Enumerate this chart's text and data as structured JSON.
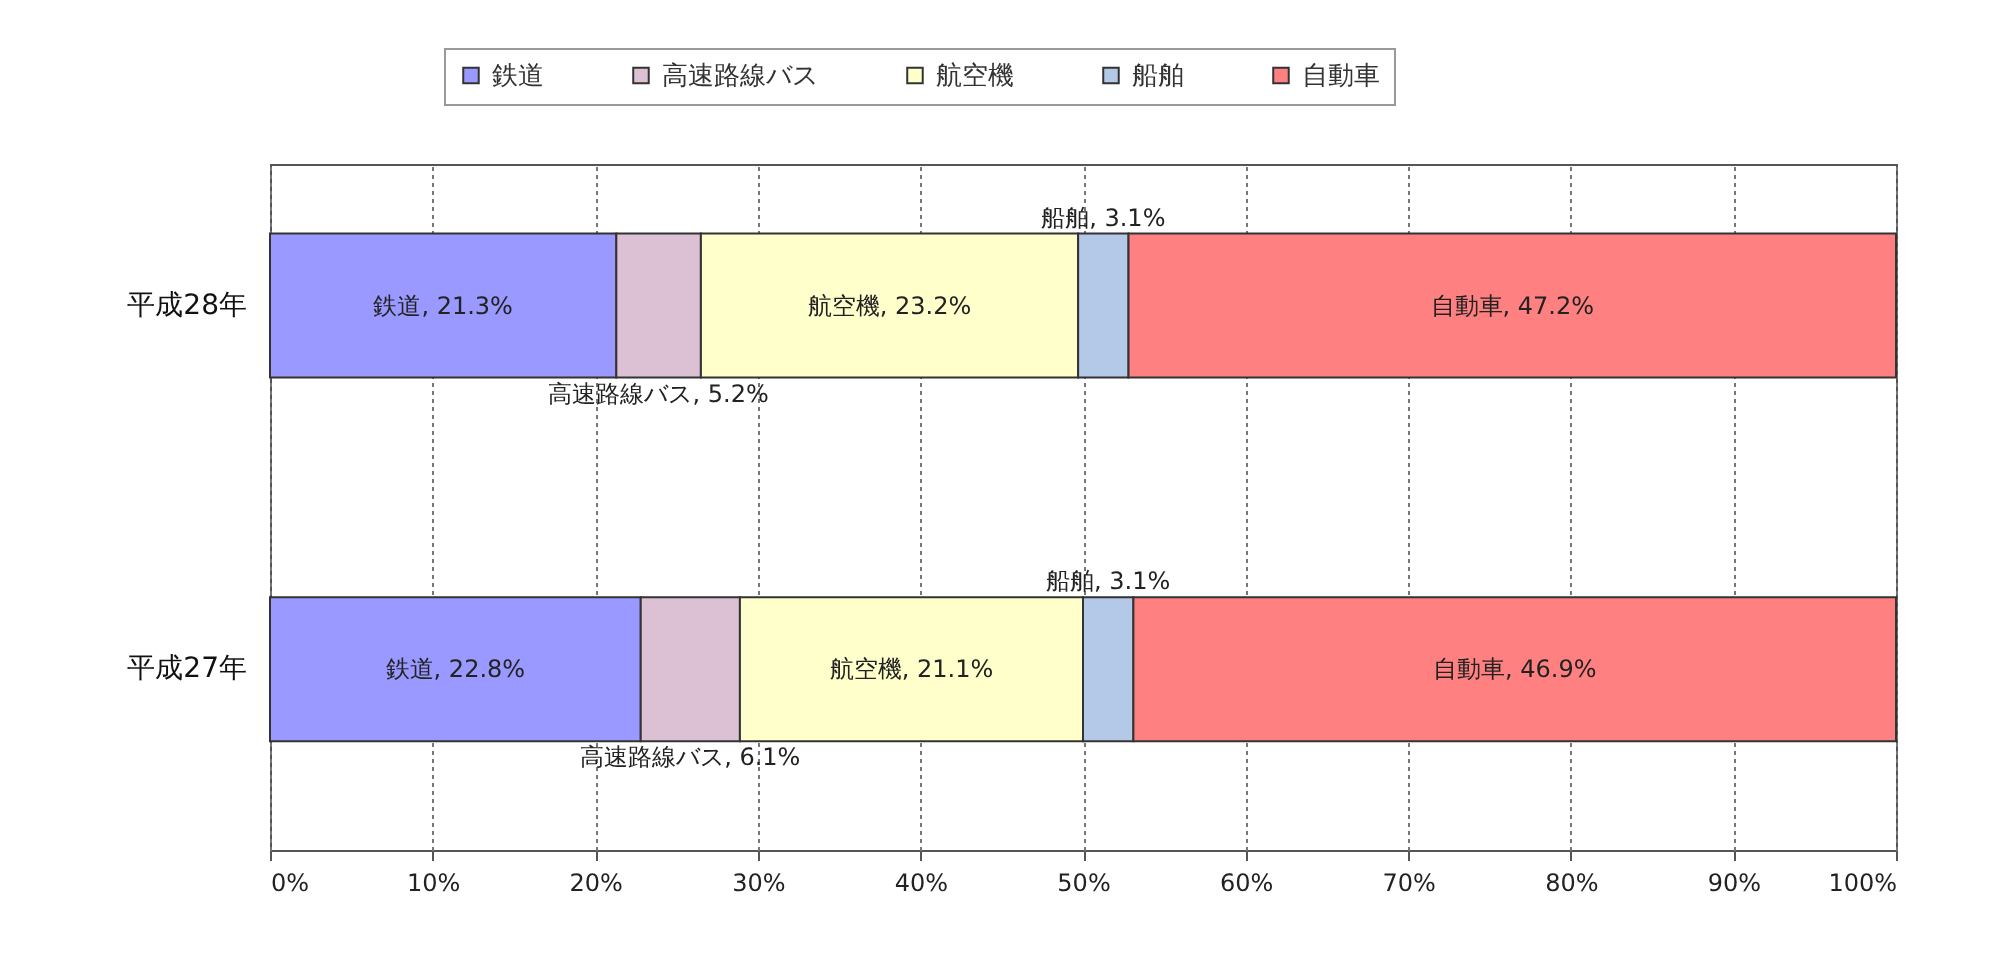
{
  "chart_data": {
    "type": "bar",
    "orientation": "horizontal",
    "stacked": true,
    "categories": [
      "平成28年",
      "平成27年"
    ],
    "series": [
      {
        "name": "鉄道",
        "color": "#9999ff",
        "values": [
          21.3,
          22.8
        ],
        "value_labels": [
          "鉄道, 21.3%",
          "鉄道, 22.8%"
        ]
      },
      {
        "name": "高速路線バス",
        "color": "#dcc0d4",
        "values": [
          5.2,
          6.1
        ],
        "value_labels": [
          "高速路線バス, 5.2%",
          "高速路線バス, 6.1%"
        ]
      },
      {
        "name": "航空機",
        "color": "#ffffcc",
        "values": [
          23.2,
          21.1
        ],
        "value_labels": [
          "航空機, 23.2%",
          "航空機, 21.1%"
        ]
      },
      {
        "name": "船舶",
        "color": "#b4c8e8",
        "values": [
          3.1,
          3.1
        ],
        "value_labels": [
          "船舶, 3.1%",
          "船舶, 3.1%"
        ]
      },
      {
        "name": "自動車",
        "color": "#ff8080",
        "values": [
          47.2,
          46.9
        ],
        "value_labels": [
          "自動車, 47.2%",
          "自動車, 46.9%"
        ]
      }
    ],
    "xlim": [
      0,
      100
    ],
    "xticks": [
      {
        "value": 0,
        "label": "0%"
      },
      {
        "value": 10,
        "label": "10%"
      },
      {
        "value": 20,
        "label": "20%"
      },
      {
        "value": 30,
        "label": "30%"
      },
      {
        "value": 40,
        "label": "40%"
      },
      {
        "value": 50,
        "label": "50%"
      },
      {
        "value": 60,
        "label": "60%"
      },
      {
        "value": 70,
        "label": "70%"
      },
      {
        "value": 80,
        "label": "80%"
      },
      {
        "value": 90,
        "label": "90%"
      },
      {
        "value": 100,
        "label": "100%"
      }
    ],
    "grid": "x",
    "legend": "top"
  }
}
